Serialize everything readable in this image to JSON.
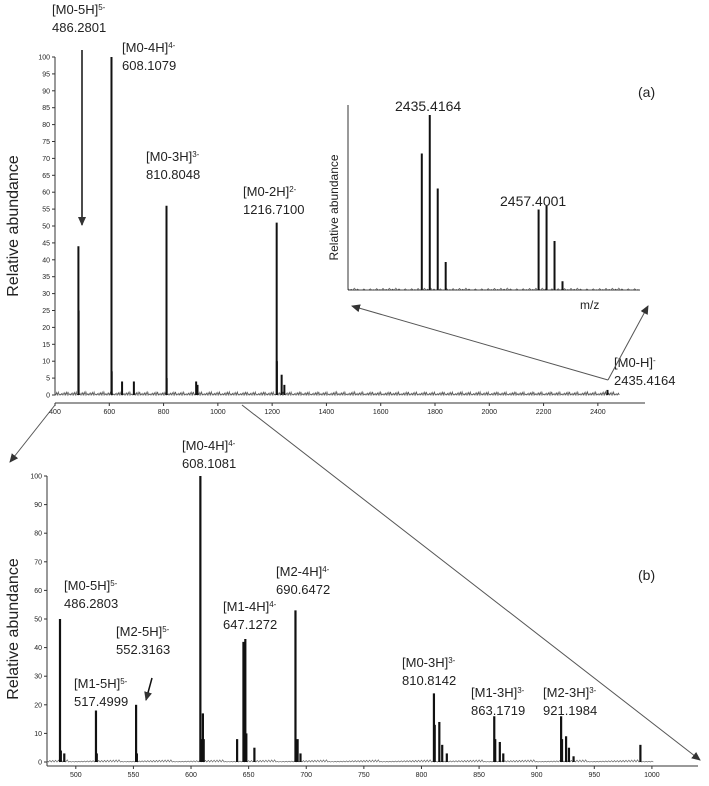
{
  "chart_data": [
    {
      "type": "bar",
      "panel_label": "(a)",
      "ylabel": "Relative abundance",
      "xlim": [
        400,
        2500
      ],
      "ylim": [
        0,
        100
      ],
      "x_ticks": [
        "400",
        "600",
        "800",
        "1000",
        "1200",
        "1400",
        "1600",
        "1800",
        "2000",
        "2200",
        "2400"
      ],
      "y_ticks": [
        "0",
        "5",
        "10",
        "15",
        "20",
        "25",
        "30",
        "35",
        "40",
        "45",
        "50",
        "55",
        "60",
        "65",
        "70",
        "75",
        "80",
        "85",
        "90",
        "95",
        "100"
      ],
      "peaks": [
        {
          "x": 486.2801,
          "y": 44
        },
        {
          "x": 487.0,
          "y": 25
        },
        {
          "x": 608.1079,
          "y": 100
        },
        {
          "x": 609.0,
          "y": 7
        },
        {
          "x": 647.1,
          "y": 4
        },
        {
          "x": 690.6,
          "y": 4
        },
        {
          "x": 810.8048,
          "y": 56
        },
        {
          "x": 811.5,
          "y": 5
        },
        {
          "x": 920.0,
          "y": 4
        },
        {
          "x": 925.0,
          "y": 3
        },
        {
          "x": 1216.71,
          "y": 51
        },
        {
          "x": 1217.5,
          "y": 10
        },
        {
          "x": 1235.0,
          "y": 6
        },
        {
          "x": 1245.0,
          "y": 3
        },
        {
          "x": 2435.4164,
          "y": 1.5
        }
      ],
      "annotations": [
        {
          "ion": "[M0-5H]",
          "charge": "5-",
          "mz": "486.2801"
        },
        {
          "ion": "[M0-4H]",
          "charge": "4-",
          "mz": "608.1079"
        },
        {
          "ion": "[M0-3H]",
          "charge": "3-",
          "mz": "810.8048"
        },
        {
          "ion": "[M0-2H]",
          "charge": "2-",
          "mz": "1216.7100"
        },
        {
          "ion": "[M0-H]",
          "charge": "-",
          "mz": "2435.4164"
        }
      ],
      "inset": {
        "ylabel": "Relative abundance",
        "xlabel": "m/z",
        "peak_labels": [
          "2435.4164",
          "2457.4001"
        ],
        "peaks": [
          {
            "x": 2433.9,
            "y": 78
          },
          {
            "x": 2435.4,
            "y": 100
          },
          {
            "x": 2436.9,
            "y": 58
          },
          {
            "x": 2438.4,
            "y": 16
          },
          {
            "x": 2455.9,
            "y": 46
          },
          {
            "x": 2457.4,
            "y": 48
          },
          {
            "x": 2458.9,
            "y": 28
          },
          {
            "x": 2460.4,
            "y": 5
          }
        ],
        "xlim": [
          2420,
          2475
        ],
        "ylim": [
          0,
          100
        ]
      }
    },
    {
      "type": "bar",
      "panel_label": "(b)",
      "ylabel": "Relative abundance",
      "xlim": [
        475,
        1040
      ],
      "ylim": [
        0,
        100
      ],
      "x_ticks": [
        "500",
        "550",
        "600",
        "650",
        "700",
        "750",
        "800",
        "850",
        "900",
        "950",
        "1000"
      ],
      "y_ticks": [
        "0",
        "10",
        "20",
        "30",
        "40",
        "50",
        "60",
        "70",
        "80",
        "90",
        "100"
      ],
      "peaks": [
        {
          "x": 486.2803,
          "y": 50
        },
        {
          "x": 487.0,
          "y": 4
        },
        {
          "x": 490.0,
          "y": 3
        },
        {
          "x": 517.4999,
          "y": 18
        },
        {
          "x": 518.2,
          "y": 3
        },
        {
          "x": 552.3163,
          "y": 20
        },
        {
          "x": 553.0,
          "y": 3
        },
        {
          "x": 608.1081,
          "y": 100
        },
        {
          "x": 608.7,
          "y": 8
        },
        {
          "x": 610.3,
          "y": 17
        },
        {
          "x": 611.0,
          "y": 8
        },
        {
          "x": 640.0,
          "y": 8
        },
        {
          "x": 645.5,
          "y": 42
        },
        {
          "x": 647.1272,
          "y": 43
        },
        {
          "x": 648.0,
          "y": 10
        },
        {
          "x": 655.0,
          "y": 5
        },
        {
          "x": 690.6472,
          "y": 53
        },
        {
          "x": 692.5,
          "y": 8
        },
        {
          "x": 695.0,
          "y": 3
        },
        {
          "x": 810.8142,
          "y": 24
        },
        {
          "x": 811.5,
          "y": 13
        },
        {
          "x": 815.5,
          "y": 14
        },
        {
          "x": 818.0,
          "y": 6
        },
        {
          "x": 822.0,
          "y": 3
        },
        {
          "x": 863.1719,
          "y": 16
        },
        {
          "x": 864.0,
          "y": 8
        },
        {
          "x": 868.0,
          "y": 7
        },
        {
          "x": 871.0,
          "y": 3
        },
        {
          "x": 921.1984,
          "y": 16
        },
        {
          "x": 922.0,
          "y": 8
        },
        {
          "x": 925.5,
          "y": 9
        },
        {
          "x": 928.0,
          "y": 5
        },
        {
          "x": 932.0,
          "y": 2
        },
        {
          "x": 990.0,
          "y": 6
        }
      ],
      "annotations": [
        {
          "ion": "[M0-5H]",
          "charge": "5-",
          "mz": "486.2803"
        },
        {
          "ion": "[M1-5H]",
          "charge": "5-",
          "mz": "517.4999"
        },
        {
          "ion": "[M2-5H]",
          "charge": "5-",
          "mz": "552.3163"
        },
        {
          "ion": "[M0-4H]",
          "charge": "4-",
          "mz": "608.1081"
        },
        {
          "ion": "[M1-4H]",
          "charge": "4-",
          "mz": "647.1272"
        },
        {
          "ion": "[M2-4H]",
          "charge": "4-",
          "mz": "690.6472"
        },
        {
          "ion": "[M0-3H]",
          "charge": "3-",
          "mz": "810.8142"
        },
        {
          "ion": "[M1-3H]",
          "charge": "3-",
          "mz": "863.1719"
        },
        {
          "ion": "[M2-3H]",
          "charge": "3-",
          "mz": "921.1984"
        }
      ]
    }
  ]
}
